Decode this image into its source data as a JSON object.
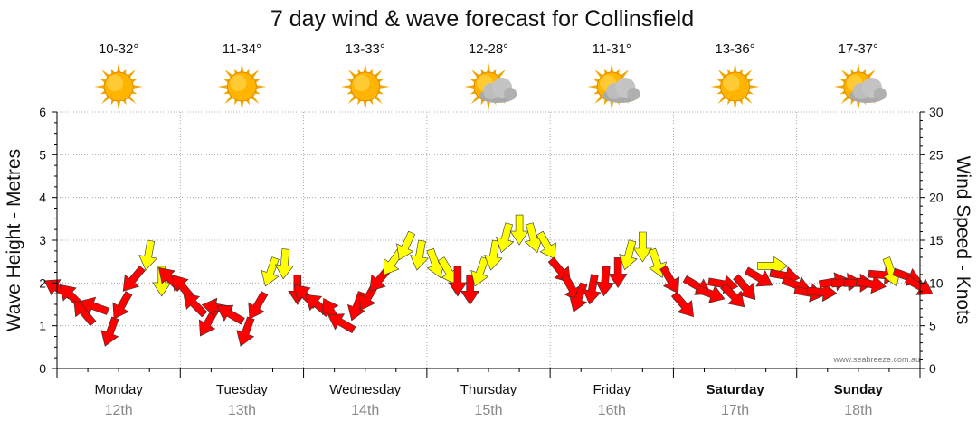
{
  "chart_data": {
    "type": "line",
    "title": "7 day wind & wave forecast for Collinsfield",
    "ylabel_left": "Wave Height - Metres",
    "ylabel_right": "Wind Speed - Knots",
    "ylim_left": [
      0,
      6
    ],
    "ylim_right": [
      0,
      30
    ],
    "yticks_left": [
      "0",
      "1",
      "2",
      "3",
      "4",
      "5",
      "6"
    ],
    "yticks_right": [
      "0",
      "5",
      "10",
      "15",
      "20",
      "25",
      "30"
    ],
    "grid": true,
    "watermark": "www.seabreeze.com.au",
    "colors": {
      "strong": "#ffff00",
      "moderate": "#ff0000",
      "outline": "#333333",
      "grid": "#999999"
    },
    "days": [
      {
        "name": "Monday",
        "date": "12th",
        "temp": "10-32°",
        "weather": "sunny-icon",
        "bold": false
      },
      {
        "name": "Tuesday",
        "date": "13th",
        "temp": "11-34°",
        "weather": "sunny-icon",
        "bold": false
      },
      {
        "name": "Wednesday",
        "date": "14th",
        "temp": "13-33°",
        "weather": "sunny-icon",
        "bold": false
      },
      {
        "name": "Thursday",
        "date": "15th",
        "temp": "12-28°",
        "weather": "partly-cloudy-icon",
        "bold": false
      },
      {
        "name": "Friday",
        "date": "16th",
        "temp": "11-31°",
        "weather": "partly-cloudy-icon",
        "bold": false
      },
      {
        "name": "Saturday",
        "date": "17th",
        "temp": "13-36°",
        "weather": "sunny-icon",
        "bold": true
      },
      {
        "name": "Sunday",
        "date": "18th",
        "temp": "17-37°",
        "weather": "partly-cloudy-icon",
        "bold": true
      }
    ],
    "series": [
      {
        "name": "Wind speed (knots) with direction",
        "unit": "knots",
        "points": [
          {
            "t": 0.05,
            "speed": 9,
            "dir": 300,
            "level": "moderate"
          },
          {
            "t": 0.15,
            "speed": 8,
            "dir": 315,
            "level": "moderate"
          },
          {
            "t": 0.25,
            "speed": 6,
            "dir": 320,
            "level": "moderate"
          },
          {
            "t": 0.35,
            "speed": 7,
            "dir": 290,
            "level": "moderate"
          },
          {
            "t": 0.45,
            "speed": 5,
            "dir": 200,
            "level": "moderate"
          },
          {
            "t": 0.55,
            "speed": 8,
            "dir": 210,
            "level": "moderate"
          },
          {
            "t": 0.65,
            "speed": 11,
            "dir": 220,
            "level": "moderate"
          },
          {
            "t": 0.75,
            "speed": 14,
            "dir": 190,
            "level": "strong"
          },
          {
            "t": 0.85,
            "speed": 11,
            "dir": 180,
            "level": "strong"
          },
          {
            "t": 0.95,
            "speed": 10,
            "dir": 315,
            "level": "moderate"
          },
          {
            "t": 1.05,
            "speed": 9,
            "dir": 320,
            "level": "moderate"
          },
          {
            "t": 1.15,
            "speed": 7,
            "dir": 315,
            "level": "moderate"
          },
          {
            "t": 1.25,
            "speed": 6,
            "dir": 210,
            "level": "moderate"
          },
          {
            "t": 1.35,
            "speed": 7,
            "dir": 280,
            "level": "moderate"
          },
          {
            "t": 1.45,
            "speed": 6,
            "dir": 300,
            "level": "moderate"
          },
          {
            "t": 1.55,
            "speed": 5,
            "dir": 200,
            "level": "moderate"
          },
          {
            "t": 1.65,
            "speed": 8,
            "dir": 210,
            "level": "moderate"
          },
          {
            "t": 1.75,
            "speed": 12,
            "dir": 200,
            "level": "strong"
          },
          {
            "t": 1.85,
            "speed": 13,
            "dir": 185,
            "level": "strong"
          },
          {
            "t": 1.95,
            "speed": 10,
            "dir": 180,
            "level": "moderate"
          },
          {
            "t": 2.05,
            "speed": 8,
            "dir": 315,
            "level": "moderate"
          },
          {
            "t": 2.15,
            "speed": 7,
            "dir": 310,
            "level": "moderate"
          },
          {
            "t": 2.25,
            "speed": 6,
            "dir": 330,
            "level": "moderate"
          },
          {
            "t": 2.35,
            "speed": 5,
            "dir": 300,
            "level": "moderate"
          },
          {
            "t": 2.45,
            "speed": 8,
            "dir": 200,
            "level": "moderate"
          },
          {
            "t": 2.55,
            "speed": 9,
            "dir": 210,
            "level": "moderate"
          },
          {
            "t": 2.65,
            "speed": 11,
            "dir": 220,
            "level": "moderate"
          },
          {
            "t": 2.75,
            "speed": 13,
            "dir": 215,
            "level": "strong"
          },
          {
            "t": 2.85,
            "speed": 15,
            "dir": 205,
            "level": "strong"
          },
          {
            "t": 2.95,
            "speed": 14,
            "dir": 190,
            "level": "strong"
          },
          {
            "t": 3.05,
            "speed": 13,
            "dir": 160,
            "level": "strong"
          },
          {
            "t": 3.15,
            "speed": 12,
            "dir": 150,
            "level": "strong"
          },
          {
            "t": 3.25,
            "speed": 11,
            "dir": 180,
            "level": "moderate"
          },
          {
            "t": 3.35,
            "speed": 10,
            "dir": 180,
            "level": "moderate"
          },
          {
            "t": 3.45,
            "speed": 12,
            "dir": 200,
            "level": "strong"
          },
          {
            "t": 3.55,
            "speed": 14,
            "dir": 190,
            "level": "strong"
          },
          {
            "t": 3.65,
            "speed": 16,
            "dir": 195,
            "level": "strong"
          },
          {
            "t": 3.75,
            "speed": 17,
            "dir": 180,
            "level": "strong"
          },
          {
            "t": 3.85,
            "speed": 16,
            "dir": 165,
            "level": "strong"
          },
          {
            "t": 3.95,
            "speed": 15,
            "dir": 150,
            "level": "strong"
          },
          {
            "t": 4.05,
            "speed": 12,
            "dir": 140,
            "level": "moderate"
          },
          {
            "t": 4.15,
            "speed": 10,
            "dir": 150,
            "level": "moderate"
          },
          {
            "t": 4.25,
            "speed": 9,
            "dir": 200,
            "level": "moderate"
          },
          {
            "t": 4.35,
            "speed": 10,
            "dir": 190,
            "level": "moderate"
          },
          {
            "t": 4.45,
            "speed": 11,
            "dir": 185,
            "level": "moderate"
          },
          {
            "t": 4.55,
            "speed": 12,
            "dir": 180,
            "level": "moderate"
          },
          {
            "t": 4.65,
            "speed": 14,
            "dir": 195,
            "level": "strong"
          },
          {
            "t": 4.75,
            "speed": 15,
            "dir": 180,
            "level": "strong"
          },
          {
            "t": 4.85,
            "speed": 13,
            "dir": 160,
            "level": "strong"
          },
          {
            "t": 4.95,
            "speed": 11,
            "dir": 150,
            "level": "moderate"
          },
          {
            "t": 5.05,
            "speed": 8,
            "dir": 140,
            "level": "moderate"
          },
          {
            "t": 5.15,
            "speed": 10,
            "dir": 120,
            "level": "moderate"
          },
          {
            "t": 5.25,
            "speed": 9,
            "dir": 110,
            "level": "moderate"
          },
          {
            "t": 5.35,
            "speed": 10,
            "dir": 100,
            "level": "moderate"
          },
          {
            "t": 5.45,
            "speed": 9,
            "dir": 135,
            "level": "moderate"
          },
          {
            "t": 5.55,
            "speed": 10,
            "dir": 140,
            "level": "moderate"
          },
          {
            "t": 5.65,
            "speed": 11,
            "dir": 120,
            "level": "moderate"
          },
          {
            "t": 5.75,
            "speed": 12,
            "dir": 90,
            "level": "strong"
          },
          {
            "t": 5.85,
            "speed": 11,
            "dir": 100,
            "level": "moderate"
          },
          {
            "t": 5.95,
            "speed": 10,
            "dir": 110,
            "level": "moderate"
          },
          {
            "t": 6.05,
            "speed": 9,
            "dir": 100,
            "level": "moderate"
          },
          {
            "t": 6.15,
            "speed": 9,
            "dir": 95,
            "level": "moderate"
          },
          {
            "t": 6.25,
            "speed": 10,
            "dir": 80,
            "level": "moderate"
          },
          {
            "t": 6.35,
            "speed": 10,
            "dir": 85,
            "level": "moderate"
          },
          {
            "t": 6.45,
            "speed": 10,
            "dir": 90,
            "level": "moderate"
          },
          {
            "t": 6.55,
            "speed": 10,
            "dir": 100,
            "level": "moderate"
          },
          {
            "t": 6.65,
            "speed": 11,
            "dir": 95,
            "level": "moderate"
          },
          {
            "t": 6.75,
            "speed": 12,
            "dir": 160,
            "level": "strong"
          },
          {
            "t": 6.85,
            "speed": 11,
            "dir": 110,
            "level": "moderate"
          },
          {
            "t": 6.95,
            "speed": 10,
            "dir": 120,
            "level": "moderate"
          }
        ]
      }
    ]
  }
}
